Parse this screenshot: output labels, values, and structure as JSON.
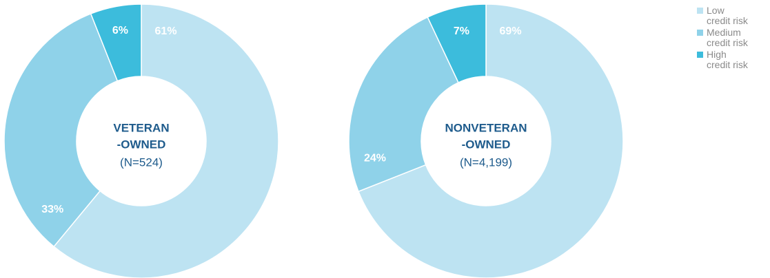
{
  "chart_data": [
    {
      "type": "donut",
      "title": [
        "VETERAN",
        "-OWNED"
      ],
      "subtitle": "(N=524)",
      "categories": [
        "Low credit risk",
        "Medium credit risk",
        "High credit risk"
      ],
      "values": [
        61,
        33,
        6
      ],
      "value_labels": [
        "61%",
        "33%",
        "6%"
      ],
      "colors": [
        "#bde3f2",
        "#8fd2e9",
        "#3cbcdc"
      ]
    },
    {
      "type": "donut",
      "title": [
        "NONVETERAN",
        "-OWNED"
      ],
      "subtitle": "(N=4,199)",
      "categories": [
        "Low credit risk",
        "Medium credit risk",
        "High credit risk"
      ],
      "values": [
        69,
        24,
        7
      ],
      "value_labels": [
        "69%",
        "24%",
        "7%"
      ],
      "colors": [
        "#bde3f2",
        "#8fd2e9",
        "#3cbcdc"
      ]
    }
  ]
}
